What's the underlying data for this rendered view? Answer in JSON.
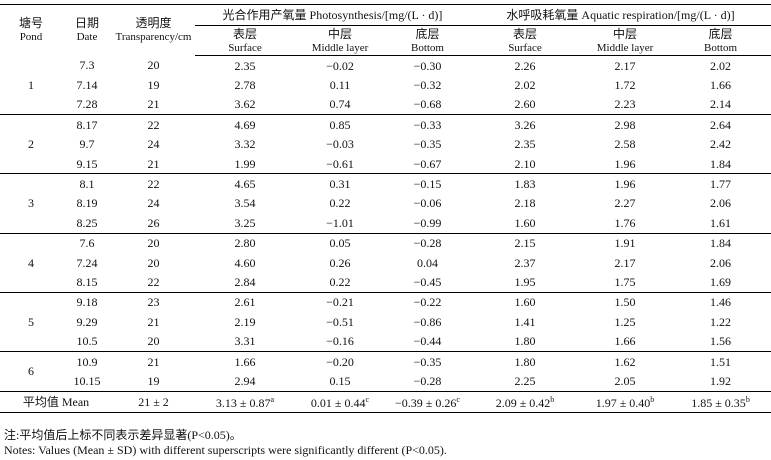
{
  "header": {
    "pond": {
      "zh": "塘号",
      "en": "Pond"
    },
    "date": {
      "zh": "日期",
      "en": "Date"
    },
    "transparency": {
      "zh": "透明度",
      "en": "Transparency/cm"
    },
    "photosynthesis": "光合作用产氧量 Photosynthesis/[mg/(L · d)]",
    "respiration": "水呼吸耗氧量 Aquatic respiration/[mg/(L · d)]",
    "layers": [
      {
        "zh": "表层",
        "en": "Surface"
      },
      {
        "zh": "中层",
        "en": "Middle layer"
      },
      {
        "zh": "底层",
        "en": "Bottom"
      }
    ]
  },
  "groups": [
    {
      "pond": "1",
      "rows": [
        [
          "7.3",
          "20",
          "2.35",
          "−0.02",
          "−0.30",
          "2.26",
          "2.17",
          "2.02"
        ],
        [
          "7.14",
          "19",
          "2.78",
          "0.11",
          "−0.32",
          "2.02",
          "1.72",
          "1.66"
        ],
        [
          "7.28",
          "21",
          "3.62",
          "0.74",
          "−0.68",
          "2.60",
          "2.23",
          "2.14"
        ]
      ]
    },
    {
      "pond": "2",
      "rows": [
        [
          "8.17",
          "22",
          "4.69",
          "0.85",
          "−0.33",
          "3.26",
          "2.98",
          "2.64"
        ],
        [
          "9.7",
          "24",
          "3.32",
          "−0.03",
          "−0.35",
          "2.35",
          "2.58",
          "2.42"
        ],
        [
          "9.15",
          "21",
          "1.99",
          "−0.61",
          "−0.67",
          "2.10",
          "1.96",
          "1.84"
        ]
      ]
    },
    {
      "pond": "3",
      "rows": [
        [
          "8.1",
          "22",
          "4.65",
          "0.31",
          "−0.15",
          "1.83",
          "1.96",
          "1.77"
        ],
        [
          "8.19",
          "24",
          "3.54",
          "0.22",
          "−0.06",
          "2.18",
          "2.27",
          "2.06"
        ],
        [
          "8.25",
          "26",
          "3.25",
          "−1.01",
          "−0.99",
          "1.60",
          "1.76",
          "1.61"
        ]
      ]
    },
    {
      "pond": "4",
      "rows": [
        [
          "7.6",
          "20",
          "2.80",
          "0.05",
          "−0.28",
          "2.15",
          "1.91",
          "1.84"
        ],
        [
          "7.24",
          "20",
          "4.60",
          "0.26",
          "0.04",
          "2.37",
          "2.17",
          "2.06"
        ],
        [
          "8.15",
          "22",
          "2.84",
          "0.22",
          "−0.45",
          "1.95",
          "1.75",
          "1.69"
        ]
      ]
    },
    {
      "pond": "5",
      "rows": [
        [
          "9.18",
          "23",
          "2.61",
          "−0.21",
          "−0.22",
          "1.60",
          "1.50",
          "1.46"
        ],
        [
          "9.29",
          "21",
          "2.19",
          "−0.51",
          "−0.86",
          "1.41",
          "1.25",
          "1.22"
        ],
        [
          "10.5",
          "20",
          "3.31",
          "−0.16",
          "−0.44",
          "1.80",
          "1.66",
          "1.56"
        ]
      ]
    },
    {
      "pond": "6",
      "rows": [
        [
          "10.9",
          "21",
          "1.66",
          "−0.20",
          "−0.35",
          "1.80",
          "1.62",
          "1.51"
        ],
        [
          "10.15",
          "19",
          "2.94",
          "0.15",
          "−0.28",
          "2.25",
          "2.05",
          "1.92"
        ]
      ]
    }
  ],
  "mean": {
    "label": "平均值 Mean",
    "transparency": "21 ± 2",
    "cells": [
      {
        "text": "3.13 ± 0.87",
        "sup": "a"
      },
      {
        "text": "0.01 ± 0.44",
        "sup": "c"
      },
      {
        "text": "−0.39 ± 0.26",
        "sup": "c"
      },
      {
        "text": "2.09 ± 0.42",
        "sup": "b"
      },
      {
        "text": "1.97 ± 0.40",
        "sup": "b"
      },
      {
        "text": "1.85 ± 0.35",
        "sup": "b"
      }
    ]
  },
  "notes": [
    "注:平均值后上标不同表示差异显著(P<0.05)。",
    "Notes: Values (Mean ± SD) with different superscripts were significantly different (P<0.05)."
  ]
}
